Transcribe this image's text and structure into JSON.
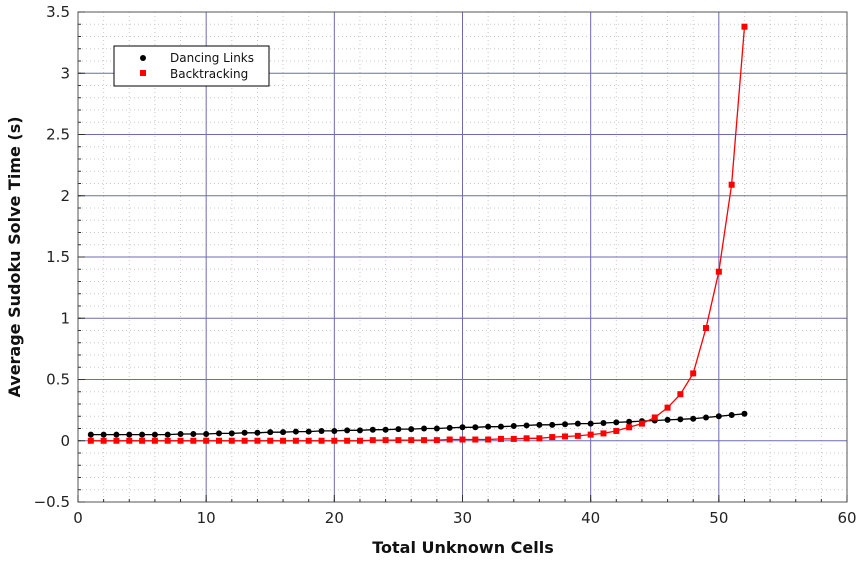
{
  "chart_data": {
    "type": "scatter",
    "xlabel": "Total Unknown Cells",
    "ylabel": "Average Sudoku Solve Time (s)",
    "xlim": [
      0,
      60
    ],
    "ylim": [
      -0.5,
      3.5
    ],
    "xticks": [
      "0",
      "10",
      "20",
      "30",
      "40",
      "50",
      "60"
    ],
    "yticks": [
      "−0.5",
      "0",
      "0.5",
      "1",
      "1.5",
      "2",
      "2.5",
      "3",
      "3.5"
    ],
    "grid": true,
    "legend_position": "top-left",
    "x": [
      1,
      2,
      3,
      4,
      5,
      6,
      7,
      8,
      9,
      10,
      11,
      12,
      13,
      14,
      15,
      16,
      17,
      18,
      19,
      20,
      21,
      22,
      23,
      24,
      25,
      26,
      27,
      28,
      29,
      30,
      31,
      32,
      33,
      34,
      35,
      36,
      37,
      38,
      39,
      40,
      41,
      42,
      43,
      44,
      45,
      46,
      47,
      48,
      49,
      50,
      51,
      52
    ],
    "series": [
      {
        "name": "Dancing Links",
        "color": "#000000",
        "marker": "circle",
        "values": [
          0.05,
          0.05,
          0.05,
          0.05,
          0.05,
          0.05,
          0.05,
          0.055,
          0.055,
          0.055,
          0.06,
          0.06,
          0.065,
          0.065,
          0.07,
          0.07,
          0.075,
          0.075,
          0.08,
          0.08,
          0.085,
          0.085,
          0.09,
          0.09,
          0.095,
          0.095,
          0.1,
          0.1,
          0.105,
          0.11,
          0.11,
          0.115,
          0.115,
          0.12,
          0.125,
          0.13,
          0.13,
          0.135,
          0.14,
          0.14,
          0.145,
          0.15,
          0.155,
          0.16,
          0.165,
          0.17,
          0.175,
          0.18,
          0.19,
          0.2,
          0.21,
          0.22
        ]
      },
      {
        "name": "Backtracking",
        "color": "#ff0000",
        "marker": "square",
        "values": [
          0.0,
          0.0,
          0.0,
          0.0,
          0.0,
          0.0,
          0.0,
          0.0,
          0.0,
          0.0,
          0.0,
          0.0,
          0.0,
          0.0,
          0.0,
          0.0,
          0.0,
          0.0,
          0.0,
          0.0,
          0.0,
          0.0,
          0.005,
          0.005,
          0.005,
          0.005,
          0.005,
          0.005,
          0.01,
          0.01,
          0.01,
          0.01,
          0.015,
          0.015,
          0.02,
          0.02,
          0.03,
          0.035,
          0.04,
          0.05,
          0.06,
          0.08,
          0.11,
          0.14,
          0.19,
          0.27,
          0.38,
          0.55,
          0.92,
          1.38,
          2.09,
          3.38
        ]
      }
    ]
  }
}
